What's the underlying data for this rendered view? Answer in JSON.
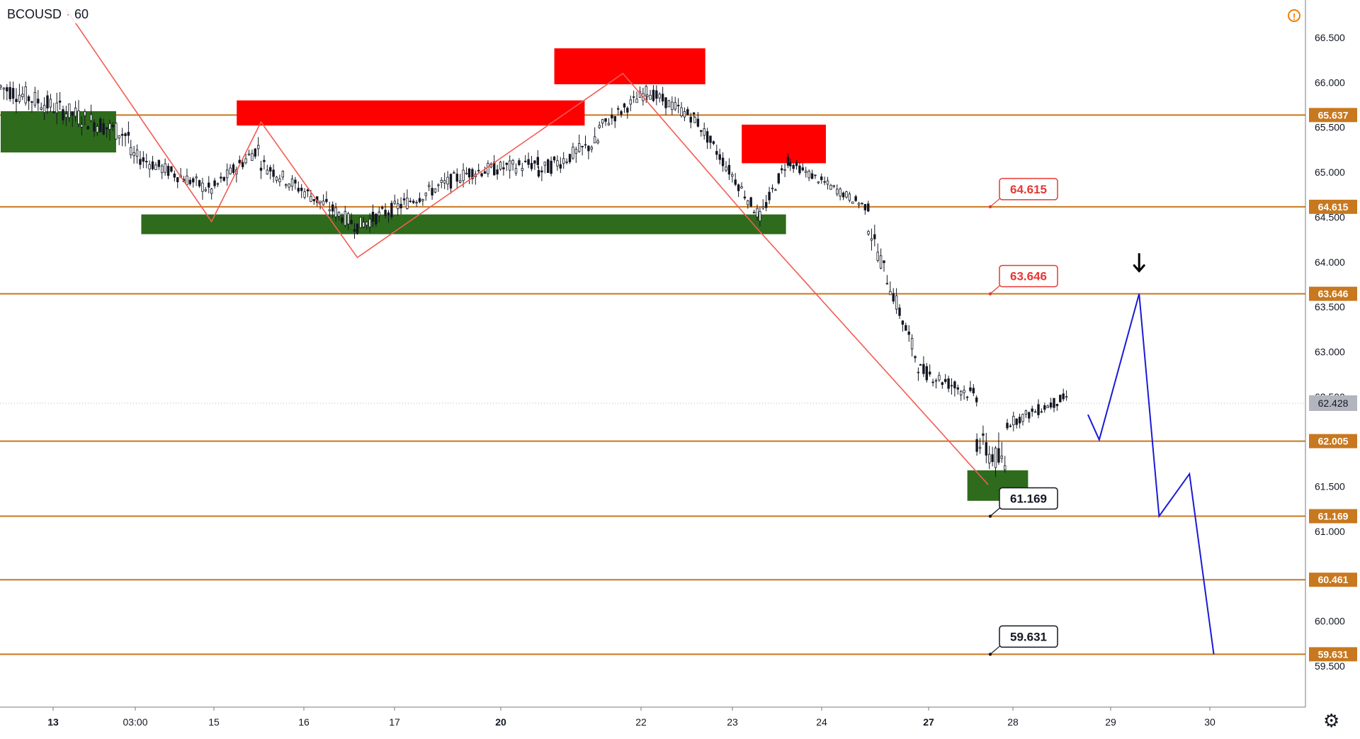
{
  "symbol": {
    "name": "BCOUSD",
    "interval": "60"
  },
  "colors": {
    "level_line": "#c8781f",
    "level_tag_bg": "#c8781f",
    "last_price_bg": "#b2b5be",
    "supply_zone": "#ff0000",
    "demand_zone": "#2e6b1c",
    "zigzag": "#f25c54",
    "projection": "#1a1ad6",
    "candle": "#131722",
    "callout_red": "#e53935",
    "callout_black": "#131722"
  },
  "chart_data": {
    "type": "line",
    "title": "BCOUSD · 60",
    "ylim": [
      59.0,
      66.9
    ],
    "x_tick_labels": [
      "13",
      "03:00",
      "15",
      "16",
      "17",
      "20",
      "22",
      "23",
      "24",
      "27",
      "28",
      "29",
      "30"
    ],
    "y_tick_values": [
      "66.500",
      "66.000",
      "65.500",
      "65.000",
      "64.500",
      "64.000",
      "63.500",
      "63.000",
      "62.500",
      "62.000",
      "61.500",
      "61.000",
      "60.500",
      "60.000",
      "59.500"
    ],
    "last_price": "62.428",
    "horizontal_levels": [
      {
        "value": 65.637,
        "label": "65.637"
      },
      {
        "value": 64.615,
        "label": "64.615"
      },
      {
        "value": 63.646,
        "label": "63.646"
      },
      {
        "value": 62.005,
        "label": "62.005"
      },
      {
        "value": 61.169,
        "label": "61.169"
      },
      {
        "value": 60.461,
        "label": "60.461"
      },
      {
        "value": 59.631,
        "label": "59.631"
      }
    ],
    "callouts": [
      {
        "label": "64.615",
        "value": 64.615,
        "style": "red"
      },
      {
        "label": "63.646",
        "value": 63.646,
        "style": "red"
      },
      {
        "label": "61.169",
        "value": 61.169,
        "style": "black"
      },
      {
        "label": "59.631",
        "value": 59.631,
        "style": "black"
      }
    ],
    "supply_zones": [
      {
        "t0": 272,
        "t1": 673,
        "p_low": 65.52,
        "p_high": 65.8
      },
      {
        "t0": 638,
        "t1": 812,
        "p_low": 65.98,
        "p_high": 66.38
      },
      {
        "t0": 854,
        "t1": 951,
        "p_low": 65.1,
        "p_high": 65.53
      }
    ],
    "demand_zones": [
      {
        "t0": 0,
        "t1": 133,
        "p_low": 65.22,
        "p_high": 65.68
      },
      {
        "t0": 162,
        "t1": 905,
        "p_low": 64.31,
        "p_high": 64.53
      },
      {
        "t0": 1114,
        "t1": 1184,
        "p_low": 61.34,
        "p_high": 61.68
      }
    ],
    "zigzag": [
      {
        "t": 75,
        "p": 66.82
      },
      {
        "t": 243,
        "p": 64.45
      },
      {
        "t": 300,
        "p": 65.56
      },
      {
        "t": 411,
        "p": 64.05
      },
      {
        "t": 717,
        "p": 66.1
      },
      {
        "t": 871,
        "p": 64.38
      },
      {
        "t": 1138,
        "p": 61.52
      }
    ],
    "projection": [
      {
        "t": 1253,
        "p": 62.3
      },
      {
        "t": 1266,
        "p": 62.02
      },
      {
        "t": 1312,
        "p": 63.646
      },
      {
        "t": 1335,
        "p": 61.169
      },
      {
        "t": 1370,
        "p": 61.64
      },
      {
        "t": 1398,
        "p": 59.631
      }
    ],
    "candles_seed": 7,
    "candles": [
      {
        "t0": 0,
        "t1": 150,
        "p0": 65.95,
        "p1": 65.4,
        "vol": 0.22
      },
      {
        "t0": 150,
        "t1": 243,
        "p0": 65.2,
        "p1": 64.8,
        "vol": 0.16
      },
      {
        "t0": 243,
        "t1": 300,
        "p0": 64.8,
        "p1": 65.3,
        "vol": 0.16
      },
      {
        "t0": 300,
        "t1": 411,
        "p0": 65.1,
        "p1": 64.4,
        "vol": 0.16
      },
      {
        "t0": 411,
        "t1": 540,
        "p0": 64.4,
        "p1": 65.0,
        "vol": 0.16
      },
      {
        "t0": 540,
        "t1": 620,
        "p0": 65.0,
        "p1": 65.1,
        "vol": 0.16
      },
      {
        "t0": 620,
        "t1": 690,
        "p0": 65.0,
        "p1": 65.35,
        "vol": 0.18
      },
      {
        "t0": 690,
        "t1": 745,
        "p0": 65.5,
        "p1": 65.9,
        "vol": 0.14
      },
      {
        "t0": 745,
        "t1": 800,
        "p0": 65.9,
        "p1": 65.6,
        "vol": 0.14
      },
      {
        "t0": 800,
        "t1": 875,
        "p0": 65.6,
        "p1": 64.5,
        "vol": 0.14
      },
      {
        "t0": 875,
        "t1": 910,
        "p0": 64.5,
        "p1": 65.2,
        "vol": 0.14
      },
      {
        "t0": 910,
        "t1": 1000,
        "p0": 65.1,
        "p1": 64.6,
        "vol": 0.1
      },
      {
        "t0": 1000,
        "t1": 1060,
        "p0": 64.4,
        "p1": 62.8,
        "vol": 0.2
      },
      {
        "t0": 1060,
        "t1": 1125,
        "p0": 62.8,
        "p1": 62.5,
        "vol": 0.16
      },
      {
        "t0": 1125,
        "t1": 1160,
        "p0": 62.0,
        "p1": 61.7,
        "vol": 0.3
      },
      {
        "t0": 1160,
        "t1": 1230,
        "p0": 62.2,
        "p1": 62.5,
        "vol": 0.12
      }
    ]
  }
}
